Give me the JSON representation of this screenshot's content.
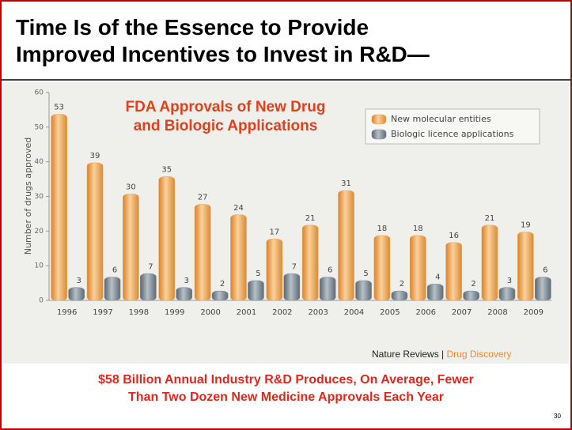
{
  "slide_title": [
    "Time Is of the Essence to Provide",
    "Improved Incentives to Invest in R&D—"
  ],
  "chart_data": {
    "type": "bar",
    "title": [
      "FDA Approvals of New Drug",
      "and Biologic Applications"
    ],
    "y_label": "Number of drugs approved",
    "categories": [
      "1996",
      "1997",
      "1998",
      "1999",
      "2000",
      "2001",
      "2002",
      "2003",
      "2004",
      "2005",
      "2006",
      "2007",
      "2008",
      "2009"
    ],
    "series": [
      {
        "name": "New molecular entities",
        "color": "#f0a24a",
        "values": [
          53,
          39,
          30,
          35,
          27,
          24,
          17,
          21,
          31,
          18,
          18,
          16,
          21,
          19
        ]
      },
      {
        "name": "Biologic licence applications",
        "color": "#7d8a95",
        "values": [
          3,
          6,
          7,
          3,
          2,
          5,
          7,
          6,
          5,
          2,
          4,
          2,
          3,
          6
        ]
      }
    ],
    "ylim": [
      0,
      60
    ],
    "yticks": [
      0,
      10,
      20,
      30,
      40,
      50,
      60
    ],
    "legend": "top-right"
  },
  "source": [
    "Nature Reviews |",
    "Drug Discovery"
  ],
  "footer": [
    "$58 Billion Annual Industry R&D Produces, On Average, Fewer",
    "Than Two Dozen New Medicine Approvals Each Year"
  ],
  "page_number": "30"
}
